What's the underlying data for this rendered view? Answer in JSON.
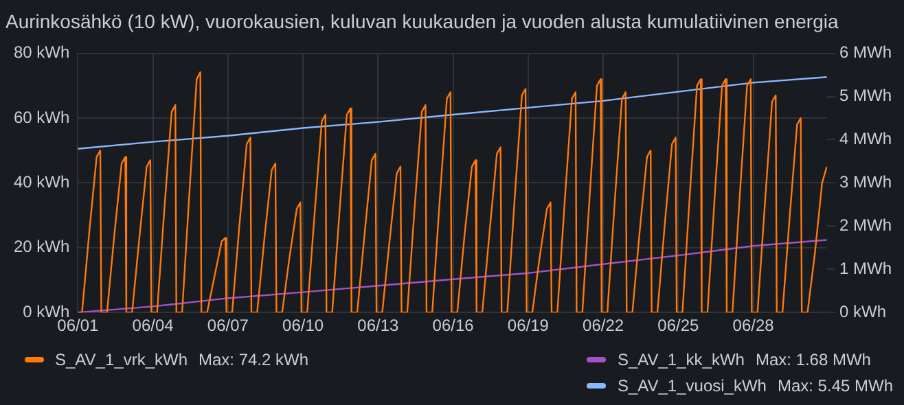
{
  "chart_data": {
    "type": "line",
    "title": "Aurinkosähkö (10 kW), vuorokausien, kuluvan kuukauden ja vuoden alusta kumulatiivinen energia",
    "xlim": [
      "--06-01T00:00",
      "--06-30T22:45"
    ],
    "xticks": [
      {
        "value": "--06-01",
        "label": "06/01"
      },
      {
        "value": "--06-04",
        "label": "06/04"
      },
      {
        "value": "--06-07",
        "label": "06/07"
      },
      {
        "value": "--06-10",
        "label": "06/10"
      },
      {
        "value": "--06-13",
        "label": "06/13"
      },
      {
        "value": "--06-16",
        "label": "06/16"
      },
      {
        "value": "--06-19",
        "label": "06/19"
      },
      {
        "value": "--06-22",
        "label": "06/22"
      },
      {
        "value": "--06-25",
        "label": "06/25"
      },
      {
        "value": "--06-28",
        "label": "06/28"
      }
    ],
    "ylim": [
      0,
      80
    ],
    "yticks": [
      {
        "value": 0,
        "label": "0 kWh"
      },
      {
        "value": 20,
        "label": "20 kWh"
      },
      {
        "value": 40,
        "label": "40 kWh"
      },
      {
        "value": 60,
        "label": "60 kWh"
      },
      {
        "value": 80,
        "label": "80 kWh"
      }
    ],
    "y2lim": [
      0,
      6
    ],
    "y2ticks": [
      {
        "value": 0,
        "label": "0 kWh"
      },
      {
        "value": 1,
        "label": "1 MWh"
      },
      {
        "value": 2,
        "label": "2 MWh"
      },
      {
        "value": 3,
        "label": "3 MWh"
      },
      {
        "value": 4,
        "label": "4 MWh"
      },
      {
        "value": 5,
        "label": "5 MWh"
      },
      {
        "value": 6,
        "label": "6 MWh"
      }
    ],
    "series": [
      {
        "name": "S_AV_1_vrk_kWh",
        "color": "#ff780a",
        "x": [
          "--06-01T00:00",
          "--06-01T04:00",
          "--06-01T11:00",
          "--06-01T18:00",
          "--06-01T21:30",
          "--06-01T22:30",
          "--06-02T04:00",
          "--06-02T11:00",
          "--06-02T18:00",
          "--06-02T21:30",
          "--06-02T22:30",
          "--06-03T04:00",
          "--06-03T11:00",
          "--06-03T18:00",
          "--06-03T21:30",
          "--06-03T22:30",
          "--06-04T04:00",
          "--06-04T11:00",
          "--06-04T18:00",
          "--06-04T21:30",
          "--06-04T22:30",
          "--06-05T04:00",
          "--06-05T11:00",
          "--06-05T18:00",
          "--06-05T21:30",
          "--06-05T22:30",
          "--06-06T04:00",
          "--06-06T11:00",
          "--06-06T18:00",
          "--06-06T21:30",
          "--06-06T22:30",
          "--06-07T04:00",
          "--06-07T11:00",
          "--06-07T18:00",
          "--06-07T21:30",
          "--06-07T22:30",
          "--06-08T04:00",
          "--06-08T11:00",
          "--06-08T18:00",
          "--06-08T21:30",
          "--06-08T22:30",
          "--06-09T04:00",
          "--06-09T11:00",
          "--06-09T18:00",
          "--06-09T21:30",
          "--06-09T22:30",
          "--06-10T04:00",
          "--06-10T11:00",
          "--06-10T18:00",
          "--06-10T21:30",
          "--06-10T22:30",
          "--06-11T04:00",
          "--06-11T11:00",
          "--06-11T18:00",
          "--06-11T21:30",
          "--06-11T22:30",
          "--06-12T04:00",
          "--06-12T11:00",
          "--06-12T18:00",
          "--06-12T21:30",
          "--06-12T22:30",
          "--06-13T04:00",
          "--06-13T11:00",
          "--06-13T18:00",
          "--06-13T21:30",
          "--06-13T22:30",
          "--06-14T04:00",
          "--06-14T11:00",
          "--06-14T18:00",
          "--06-14T21:30",
          "--06-14T22:30",
          "--06-15T04:00",
          "--06-15T11:00",
          "--06-15T18:00",
          "--06-15T21:30",
          "--06-15T22:30",
          "--06-16T04:00",
          "--06-16T11:00",
          "--06-16T18:00",
          "--06-16T21:30",
          "--06-16T22:30",
          "--06-17T04:00",
          "--06-17T11:00",
          "--06-17T18:00",
          "--06-17T21:30",
          "--06-17T22:30",
          "--06-18T04:00",
          "--06-18T11:00",
          "--06-18T18:00",
          "--06-18T21:30",
          "--06-18T22:30",
          "--06-19T04:00",
          "--06-19T11:00",
          "--06-19T18:00",
          "--06-19T21:30",
          "--06-19T22:30",
          "--06-20T04:00",
          "--06-20T11:00",
          "--06-20T18:00",
          "--06-20T21:30",
          "--06-20T22:30",
          "--06-21T04:00",
          "--06-21T11:00",
          "--06-21T18:00",
          "--06-21T21:30",
          "--06-21T22:30",
          "--06-22T04:00",
          "--06-22T11:00",
          "--06-22T18:00",
          "--06-22T21:30",
          "--06-22T22:30",
          "--06-23T04:00",
          "--06-23T11:00",
          "--06-23T18:00",
          "--06-23T21:30",
          "--06-23T22:30",
          "--06-24T04:00",
          "--06-24T11:00",
          "--06-24T18:00",
          "--06-24T21:30",
          "--06-24T22:30",
          "--06-25T04:00",
          "--06-25T11:00",
          "--06-25T18:00",
          "--06-25T21:30",
          "--06-25T22:30",
          "--06-26T04:00",
          "--06-26T11:00",
          "--06-26T18:00",
          "--06-26T21:30",
          "--06-26T22:30",
          "--06-27T04:00",
          "--06-27T11:00",
          "--06-27T18:00",
          "--06-27T21:30",
          "--06-27T22:30",
          "--06-28T04:00",
          "--06-28T11:00",
          "--06-28T18:00",
          "--06-28T21:30",
          "--06-28T22:30",
          "--06-29T04:00",
          "--06-29T11:00",
          "--06-29T18:00",
          "--06-29T21:30",
          "--06-29T22:30",
          "--06-30T04:00",
          "--06-30T11:00",
          "--06-30T18:00",
          "--06-30T22:30"
        ],
        "values": [
          0,
          0,
          25,
          48,
          50,
          0,
          0,
          24,
          46,
          48,
          0,
          0,
          23,
          45,
          47,
          0,
          0,
          32,
          62,
          64,
          0,
          0,
          37,
          72,
          74.2,
          0,
          0,
          11,
          22,
          23,
          0,
          0,
          27,
          52,
          54,
          0,
          0,
          23,
          44,
          46,
          0,
          0,
          17,
          32,
          34,
          0,
          0,
          30,
          59,
          61,
          0,
          0,
          31,
          61,
          63,
          0,
          0,
          24,
          47,
          49,
          0,
          0,
          22,
          43,
          45,
          0,
          0,
          32,
          62,
          64,
          0,
          0,
          34,
          66,
          68,
          0,
          0,
          24,
          45,
          47,
          0,
          0,
          25,
          49,
          51,
          0,
          0,
          35,
          67,
          69,
          0,
          0,
          17,
          32,
          34,
          0,
          0,
          34,
          66,
          68,
          0,
          0,
          36,
          70,
          72,
          0,
          0,
          34,
          66,
          68,
          0,
          0,
          25,
          48,
          50,
          0,
          0,
          27,
          52,
          54,
          0,
          0,
          36,
          70,
          72,
          0,
          0,
          36,
          70,
          72,
          0,
          0,
          36,
          70,
          72,
          0,
          0,
          33,
          65,
          67,
          0,
          0,
          30,
          58,
          60,
          0,
          0,
          18,
          40,
          45
        ]
      },
      {
        "name": "S_AV_1_kk_kWh",
        "color": "#a352cc",
        "axis": "y2",
        "x": [
          "--06-01T00:00",
          "--06-04",
          "--06-07",
          "--06-10",
          "--06-13",
          "--06-16",
          "--06-19",
          "--06-22",
          "--06-25",
          "--06-28",
          "--06-30T22:30"
        ],
        "values": [
          0,
          0.14,
          0.33,
          0.47,
          0.62,
          0.77,
          0.91,
          1.12,
          1.32,
          1.54,
          1.68
        ]
      },
      {
        "name": "S_AV_1_vuosi_kWh",
        "color": "#8ab8ff",
        "axis": "y2",
        "x": [
          "--06-01T00:00",
          "--06-04",
          "--06-07",
          "--06-10",
          "--06-13",
          "--06-16",
          "--06-19",
          "--06-22",
          "--06-25",
          "--06-28",
          "--06-30T22:30"
        ],
        "values": [
          3.79,
          3.95,
          4.09,
          4.27,
          4.41,
          4.58,
          4.74,
          4.9,
          5.11,
          5.32,
          5.45
        ]
      }
    ],
    "annotations": [
      "Max: 74.2 kWh",
      "Max: 1.68 MWh",
      "Max: 5.45 MWh"
    ],
    "grid": true,
    "legend": "bottom",
    "marker": "none",
    "line_style": "solid"
  }
}
